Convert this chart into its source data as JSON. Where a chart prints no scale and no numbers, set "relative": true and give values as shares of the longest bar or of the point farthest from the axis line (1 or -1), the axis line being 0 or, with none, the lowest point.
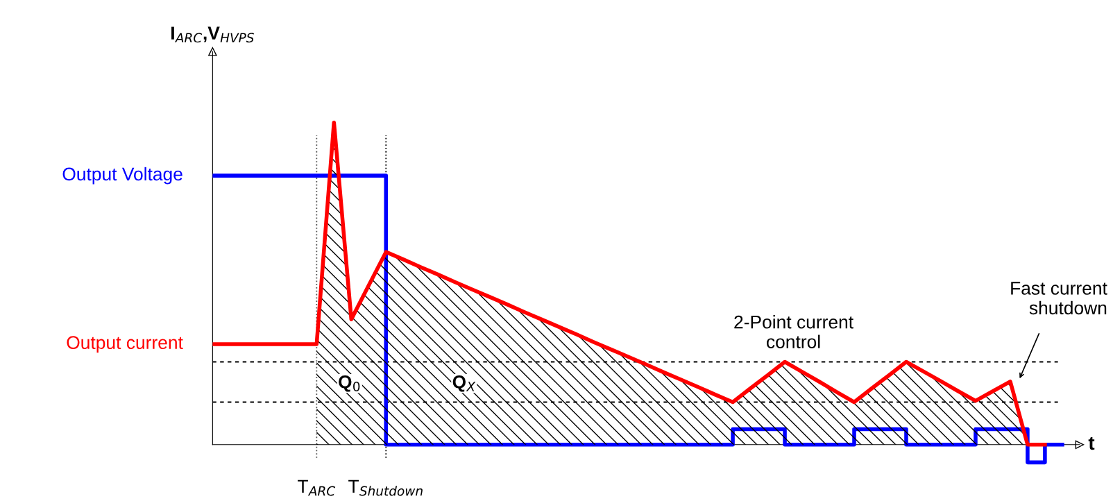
{
  "chart_data": {
    "type": "line",
    "relative": true,
    "ylabel": "I$_{ARC}$,V$_{HVPS}$",
    "xlabel": "t",
    "tick_labels": "x",
    "categories": [
      null,
      null,
      null,
      null,
      null,
      null,
      "T$_{ARC}$",
      null,
      null,
      null,
      "T$_{Shutdown}$",
      null,
      null,
      null,
      null,
      null,
      null,
      null,
      null,
      null,
      null,
      null,
      null,
      null,
      null,
      null,
      null,
      null,
      null,
      null,
      null,
      null,
      null,
      null,
      null,
      null,
      null,
      null,
      null,
      null,
      null,
      null,
      null,
      null,
      null,
      null,
      null,
      null,
      null,
      null
    ],
    "series": [
      {
        "name": "Output Voltage",
        "type": "step",
        "color": "#0000ff",
        "values": [
          0.835,
          0.835,
          0.835,
          0.835,
          0.835,
          0.835,
          0.835,
          0.835,
          0.835,
          0.835,
          0,
          0,
          0,
          0,
          0,
          0,
          0,
          0,
          0,
          0,
          0,
          0,
          0,
          0,
          0,
          0,
          0,
          0,
          0,
          0,
          0.048,
          0.048,
          0.048,
          0,
          0,
          0,
          0,
          0.048,
          0.048,
          0.048,
          0,
          0,
          0,
          0,
          0.048,
          0.048,
          0.048,
          -0.055,
          0,
          0
        ]
      },
      {
        "type": "area",
        "color": "#000000",
        "values": [
          null,
          null,
          null,
          null,
          null,
          null,
          0.312,
          1.0,
          0.389,
          0.494,
          0.598,
          0.575,
          0.551,
          0.528,
          0.504,
          0.481,
          0.458,
          0.435,
          0.411,
          0.388,
          0.365,
          0.342,
          0.318,
          0.295,
          0.272,
          0.249,
          0.225,
          0.202,
          0.179,
          0.155,
          0.132,
          0.174,
          0.215,
          0.257,
          0.226,
          0.195,
          0.163,
          0.132,
          0.174,
          0.215,
          0.257,
          0.227,
          0.197,
          0.166,
          0.136,
          0.166,
          0.196,
          0,
          null,
          null
        ]
      },
      {
        "name": "Output current",
        "color": "#ff0000",
        "values": [
          0.312,
          0.312,
          0.312,
          0.312,
          0.312,
          0.312,
          0.312,
          1.0,
          0.389,
          0.494,
          0.598,
          0.575,
          0.551,
          0.528,
          0.504,
          0.481,
          0.458,
          0.435,
          0.411,
          0.388,
          0.365,
          0.342,
          0.318,
          0.295,
          0.272,
          0.249,
          0.225,
          0.202,
          0.179,
          0.155,
          0.132,
          0.174,
          0.215,
          0.257,
          0.226,
          0.195,
          0.163,
          0.132,
          0.174,
          0.215,
          0.257,
          0.227,
          0.197,
          0.166,
          0.136,
          0.166,
          0.196,
          0,
          0,
          null
        ]
      }
    ],
    "ref_lines": [
      {
        "axis": "y",
        "value": 0.257,
        "line_style": "dashed",
        "color": "#000000"
      },
      {
        "axis": "y",
        "value": 0.132,
        "line_style": "dashed",
        "color": "#000000"
      },
      {
        "axis": "x",
        "value": "T$_{ARC}$",
        "line_style": "dotted",
        "color": "#555555"
      },
      {
        "axis": "x",
        "value": "T$_{Shutdown}$",
        "line_style": "dotted",
        "color": "#000000"
      }
    ],
    "annotations": [
      "Q$_{0}$",
      "Q$_{X}$",
      "2-Point current\ncontrol",
      "Fast current\nshutdown"
    ]
  }
}
